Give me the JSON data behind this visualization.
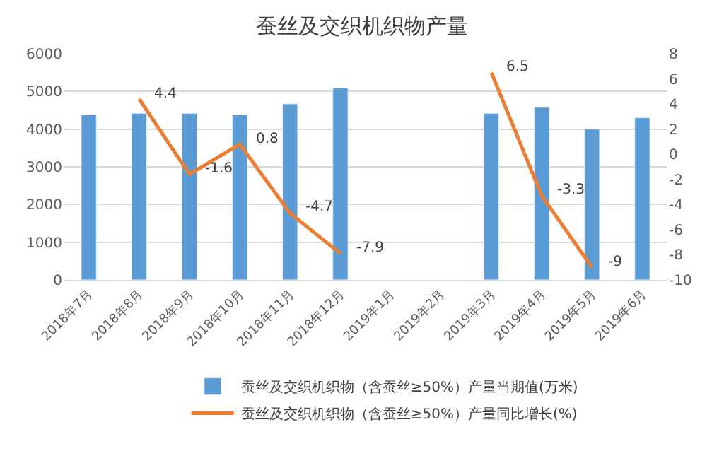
{
  "chart_data": {
    "type": "bar",
    "title": "蚕丝及交织机织物产量",
    "categories": [
      "2018年7月",
      "2018年8月",
      "2018年9月",
      "2018年10月",
      "2018年11月",
      "2018年12月",
      "2019年1月",
      "2019年2月",
      "2019年3月",
      "2019年4月",
      "2019年5月",
      "2019年6月"
    ],
    "series": [
      {
        "name": "蚕丝及交织机织物（含蚕丝≥50%）产量当期值(万米)",
        "color": "#5b9bd5",
        "values": [
          4380,
          4420,
          4420,
          4380,
          4670,
          5090,
          null,
          null,
          4420,
          4580,
          4000,
          4300
        ]
      },
      {
        "name": "蚕丝及交织机织物（含蚕丝≥50%）产量同比增长(%)",
        "color": "#ed7d31",
        "type": "line",
        "axis": "y2",
        "data_labels": true,
        "values": [
          null,
          4.4,
          -1.6,
          0.8,
          -4.7,
          -7.9,
          null,
          null,
          6.5,
          -3.3,
          -9,
          null
        ]
      }
    ],
    "ylim": [
      0,
      6000
    ],
    "yticks": [
      0,
      1000,
      2000,
      3000,
      4000,
      5000,
      6000
    ],
    "y2lim": [
      -10,
      8
    ],
    "y2ticks": [
      -10,
      -8,
      -6,
      -4,
      -2,
      0,
      2,
      4,
      6,
      8
    ],
    "grid": "y",
    "legend": "bottom",
    "marker": "none"
  }
}
